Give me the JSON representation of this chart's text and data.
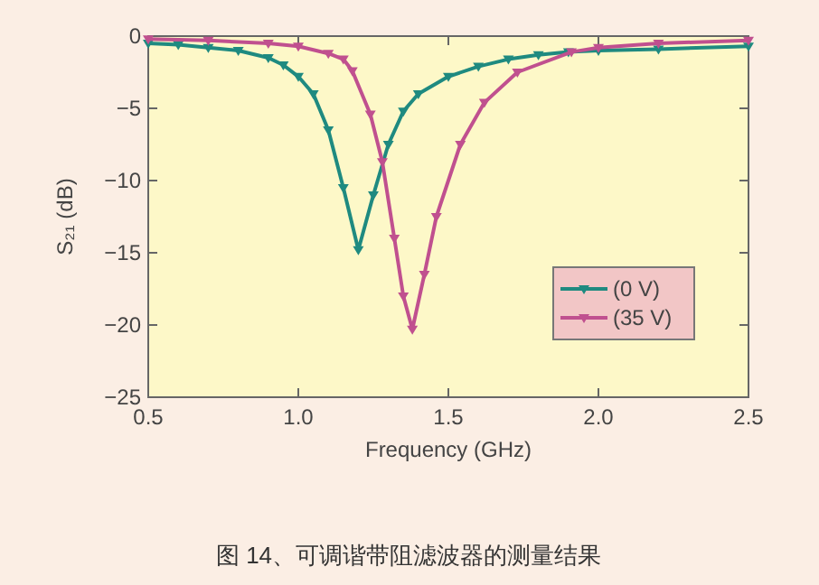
{
  "chart_data": {
    "type": "line",
    "xlabel": "Frequency (GHz)",
    "ylabel": "S₂₁ (dB)",
    "xlim": [
      0.5,
      2.5
    ],
    "ylim": [
      -25,
      0
    ],
    "xticks": [
      {
        "value": 0.5,
        "label": "0.5"
      },
      {
        "value": 1,
        "label": "1.0"
      },
      {
        "value": 1.5,
        "label": "1.5"
      },
      {
        "value": 2,
        "label": "2.0"
      },
      {
        "value": 2.5,
        "label": "2.5"
      }
    ],
    "yticks": [
      -25,
      -20,
      -15,
      -10,
      -5,
      0
    ],
    "marker": "triangle",
    "legend": "bottom right",
    "grid": false,
    "annotations": [
      "图 14、可调谐带阻滤波器的测量结果"
    ],
    "series": [
      {
        "name": "(0 V)",
        "color": "#1f8a80",
        "x": [
          0.5,
          0.6,
          0.7,
          0.8,
          0.9,
          0.95,
          1.0,
          1.05,
          1.1,
          1.15,
          1.2,
          1.25,
          1.3,
          1.35,
          1.4,
          1.5,
          1.6,
          1.7,
          1.8,
          1.9,
          2.0,
          2.2,
          2.5
        ],
        "values": [
          -0.5,
          -0.6,
          -0.8,
          -1.0,
          -1.5,
          -2.0,
          -2.8,
          -4.0,
          -6.5,
          -10.5,
          -14.8,
          -11,
          -7.5,
          -5.2,
          -4.0,
          -2.8,
          -2.1,
          -1.6,
          -1.3,
          -1.1,
          -1.0,
          -0.9,
          -0.7
        ]
      },
      {
        "name": "(35 V)",
        "color": "#c0508f",
        "x": [
          0.5,
          0.7,
          0.9,
          1.0,
          1.1,
          1.15,
          1.18,
          1.24,
          1.28,
          1.32,
          1.35,
          1.38,
          1.42,
          1.46,
          1.54,
          1.62,
          1.73,
          1.91,
          2.0,
          2.2,
          2.5
        ],
        "values": [
          -0.2,
          -0.3,
          -0.5,
          -0.7,
          -1.2,
          -1.6,
          -2.4,
          -5.4,
          -8.7,
          -14,
          -18,
          -20.3,
          -16.5,
          -12.5,
          -7.5,
          -4.6,
          -2.5,
          -1.1,
          -0.8,
          -0.5,
          -0.3
        ]
      }
    ]
  }
}
